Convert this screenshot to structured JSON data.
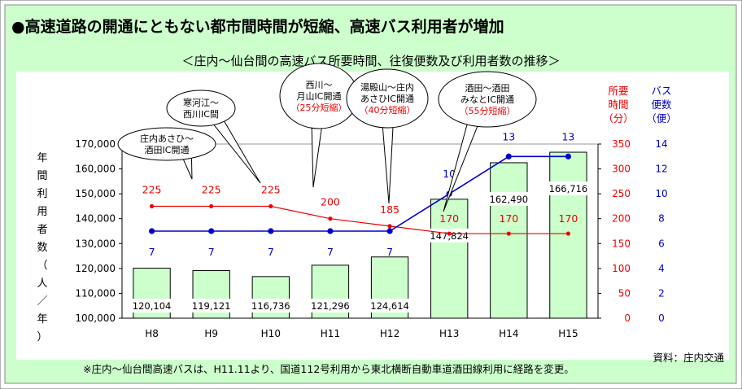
{
  "heading": "●高速道路の開通にともない都市間時間が短縮、高速バス利用者が増加",
  "chart_data": {
    "type": "bar",
    "title": "＜庄内～仙台間の高速バス所要時間、往復便数及び利用者数の推移＞",
    "categories": [
      "H8",
      "H9",
      "H10",
      "H11",
      "H12",
      "H13",
      "H14",
      "H15"
    ],
    "bar_series": {
      "ylabel": "年間利用者数（人／年）",
      "values": [
        120104,
        119121,
        116736,
        121296,
        124614,
        147824,
        162490,
        166716
      ],
      "labels": [
        "120,104",
        "119,121",
        "116,736",
        "121,296",
        "124,614",
        "147,824",
        "162,490",
        "166,716"
      ],
      "ylim": [
        100000,
        170000
      ],
      "ticks": [
        "100,000",
        "110,000",
        "120,000",
        "130,000",
        "140,000",
        "150,000",
        "160,000",
        "170,000"
      ],
      "color": "#ccffcc"
    },
    "time_series": {
      "label": "所要時間（分）",
      "values": [
        225,
        225,
        225,
        200,
        185,
        170,
        170,
        170
      ],
      "labels": [
        "225",
        "225",
        "225",
        "200",
        "185",
        "170",
        "170",
        "170"
      ],
      "ylim": [
        0,
        350
      ],
      "ticks": [
        "0",
        "50",
        "100",
        "150",
        "200",
        "250",
        "300",
        "350"
      ],
      "color": "#ee0000"
    },
    "trips_series": {
      "label": "バス便数（便）",
      "values": [
        7,
        7,
        7,
        7,
        7,
        10,
        13,
        13
      ],
      "labels": [
        "7",
        "7",
        "7",
        "7",
        "7",
        "10",
        "13",
        "13"
      ],
      "ylim": [
        0,
        14
      ],
      "ticks": [
        "0",
        "2",
        "4",
        "6",
        "8",
        "10",
        "12",
        "14"
      ],
      "color": "#0000cc"
    },
    "callouts": [
      {
        "lines": [
          "庄内あさひ～",
          "酒田IC開通"
        ],
        "red": "",
        "target": 1
      },
      {
        "lines": [
          "寒河江～",
          "西川IC間"
        ],
        "red": "",
        "target": 2
      },
      {
        "lines": [
          "西川～",
          "月山IC開通"
        ],
        "red": "（25分短縮）",
        "target": 3
      },
      {
        "lines": [
          "湯殿山～庄内",
          "あさひIC開通"
        ],
        "red": "（40分短縮）",
        "target": 4
      },
      {
        "lines": [
          "酒田～酒田",
          "みなとIC開通"
        ],
        "red": "（55分短縮）",
        "target": 5
      }
    ]
  },
  "footnote": "※庄内～仙台間高速バスは、H11.11より、国道112号利用から東北横断自動車道酒田線利用に経路を変更。",
  "source": "資料：庄内交通"
}
